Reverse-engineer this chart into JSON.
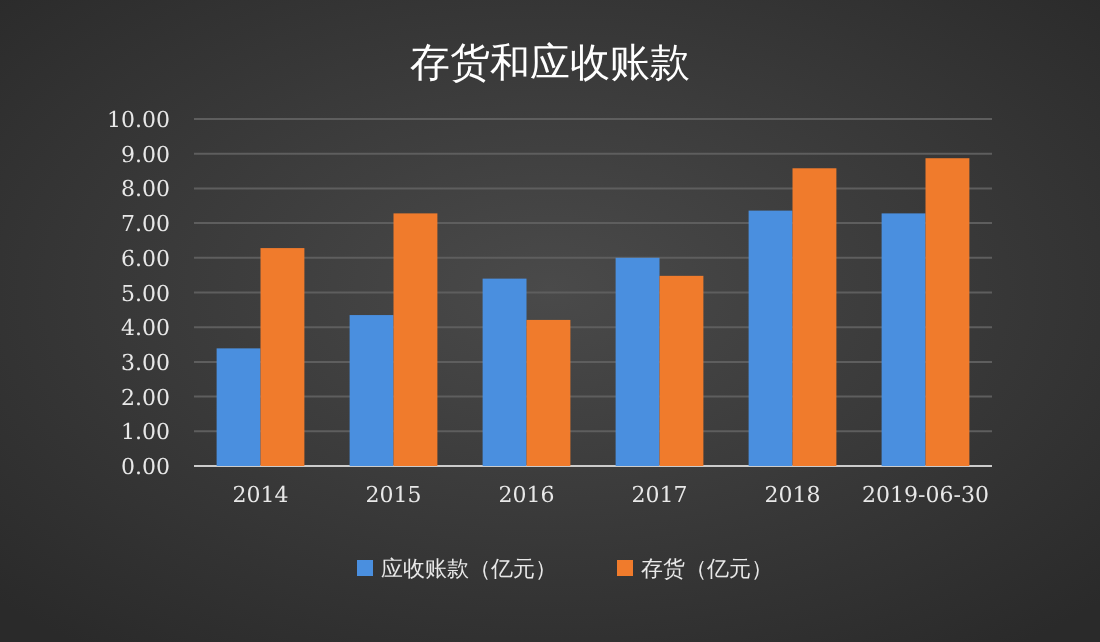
{
  "chart_data": {
    "type": "bar",
    "title": "存货和应收账款",
    "categories": [
      "2014",
      "2015",
      "2016",
      "2017",
      "2018",
      "2019-06-30"
    ],
    "series": [
      {
        "name": "应收账款（亿元）",
        "color": "#4a8fdf",
        "values": [
          3.39,
          4.35,
          5.4,
          6.0,
          7.36,
          7.28
        ]
      },
      {
        "name": "存货（亿元）",
        "color": "#f07b2c",
        "values": [
          6.28,
          7.28,
          4.21,
          5.48,
          8.58,
          8.87
        ]
      }
    ],
    "ylim": [
      0,
      10
    ],
    "yticks": [
      {
        "value": 0,
        "label": "0.00"
      },
      {
        "value": 1,
        "label": "1.00"
      },
      {
        "value": 2,
        "label": "2.00"
      },
      {
        "value": 3,
        "label": "3.00"
      },
      {
        "value": 4,
        "label": "4.00"
      },
      {
        "value": 5,
        "label": "5.00"
      },
      {
        "value": 6,
        "label": "6.00"
      },
      {
        "value": 7,
        "label": "7.00"
      },
      {
        "value": 8,
        "label": "8.00"
      },
      {
        "value": 9,
        "label": "9.00"
      },
      {
        "value": 10,
        "label": "10.00"
      }
    ],
    "grid": "y",
    "legend": "bottom"
  }
}
